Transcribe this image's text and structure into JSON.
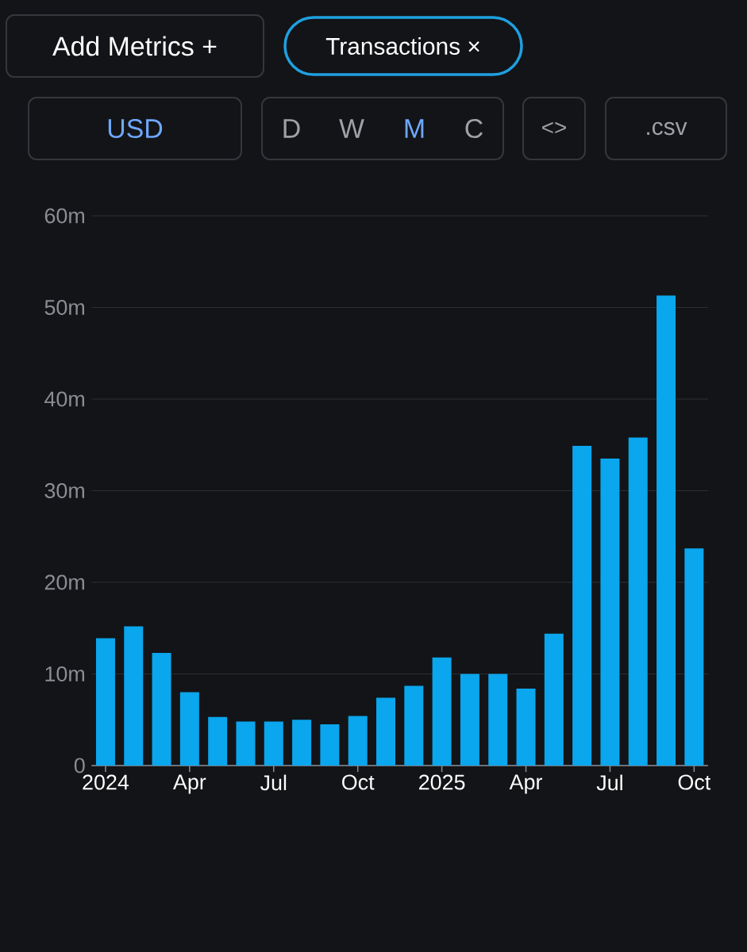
{
  "chart_data": {
    "type": "bar",
    "categories": [
      "2024",
      null,
      null,
      "Apr",
      null,
      null,
      "Jul",
      null,
      null,
      "Oct",
      null,
      null,
      "2025",
      null,
      null,
      "Apr",
      null,
      null,
      "Jul",
      null,
      null,
      "Oct"
    ],
    "values": [
      13900000,
      15200000,
      12300000,
      8000000,
      5300000,
      4800000,
      4800000,
      5000000,
      4500000,
      5400000,
      7400000,
      8700000,
      11800000,
      10000000,
      10000000,
      8400000,
      14400000,
      34900000,
      33500000,
      35800000,
      51300000,
      23700000
    ],
    "color": "#0aa6ee",
    "ylim": [
      0,
      60000000
    ],
    "yticks": [
      0,
      {
        "value": 10000000,
        "label": "10m"
      },
      {
        "value": 20000000,
        "label": "20m"
      },
      {
        "value": 30000000,
        "label": "30m"
      },
      {
        "value": 40000000,
        "label": "40m"
      },
      {
        "value": 50000000,
        "label": "50m"
      },
      {
        "value": 60000000,
        "label": "60m"
      }
    ],
    "grid": "y",
    "annotations": [
      "Add Metrics  +",
      "Transactions  ×",
      "USD",
      "D",
      "W",
      "M",
      "C",
      "<>",
      ".csv"
    ]
  }
}
